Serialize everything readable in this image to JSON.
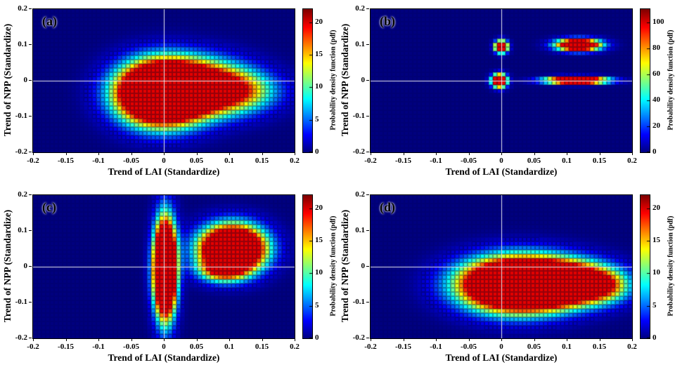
{
  "figure": {
    "background": "#ffffff"
  },
  "chart_data": [
    {
      "type": "heatmap",
      "panel_label": "(a)",
      "xlabel": "Trend of LAI (Standardize)",
      "ylabel": "Trend of NPP (Standardize)",
      "colorbar_label": "Probability density function (pdf)",
      "colormap": "jet",
      "xlim": [
        -0.2,
        0.2
      ],
      "ylim": [
        -0.2,
        0.2
      ],
      "x_ticks": [
        "-0.2",
        "-0.15",
        "-0.1",
        "-0.05",
        "0",
        "0.05",
        "0.1",
        "0.15",
        "0.2"
      ],
      "y_ticks": [
        "-0.2",
        "-0.1",
        "0",
        "0.1",
        "0.2"
      ],
      "colorbar_ticks": [
        "0",
        "5",
        "10",
        "15",
        "20"
      ],
      "colorbar_max": 22,
      "crosshair": true,
      "crosshair_color": "#ffffff",
      "blobs": [
        {
          "x": -0.005,
          "y": -0.035,
          "sx": 0.042,
          "sy": 0.055,
          "amp": 55
        },
        {
          "x": 0.055,
          "y": -0.02,
          "sx": 0.05,
          "sy": 0.05,
          "amp": 26
        },
        {
          "x": 0.115,
          "y": -0.03,
          "sx": 0.042,
          "sy": 0.038,
          "amp": 11
        }
      ]
    },
    {
      "type": "heatmap",
      "panel_label": "(b)",
      "xlabel": "Trend of LAI (Standardize)",
      "ylabel": "Trend of NPP (Standardize)",
      "colorbar_label": "Probability density function (pdf)",
      "colormap": "jet",
      "xlim": [
        -0.2,
        0.2
      ],
      "ylim": [
        -0.2,
        0.2
      ],
      "x_ticks": [
        "-0.2",
        "-0.15",
        "-0.1",
        "-0.05",
        "0",
        "0.05",
        "0.1",
        "0.15",
        "0.2"
      ],
      "y_ticks": [
        "-0.2",
        "-0.1",
        "0",
        "0.1",
        "0.2"
      ],
      "colorbar_ticks": [
        "0",
        "20",
        "40",
        "60",
        "80",
        "100"
      ],
      "colorbar_max": 110,
      "crosshair": true,
      "crosshair_color": "#ffffff",
      "blobs": [
        {
          "x": 0.0,
          "y": 0.095,
          "sx": 0.0065,
          "sy": 0.011,
          "amp": 200
        },
        {
          "x": -0.003,
          "y": 0.0,
          "sx": 0.0075,
          "sy": 0.012,
          "amp": 210
        },
        {
          "x": 0.118,
          "y": 0.1,
          "sx": 0.022,
          "sy": 0.011,
          "amp": 200
        },
        {
          "x": 0.115,
          "y": 0.001,
          "sx": 0.03,
          "sy": 0.0065,
          "amp": 210
        }
      ]
    },
    {
      "type": "heatmap",
      "panel_label": "(c)",
      "xlabel": "Trend of LAI (Standardize)",
      "ylabel": "Trend of NPP (Standardize)",
      "colorbar_label": "Probability density function (pdf)",
      "colormap": "jet",
      "xlim": [
        -0.2,
        0.2
      ],
      "ylim": [
        -0.2,
        0.2
      ],
      "x_ticks": [
        "-0.2",
        "-0.15",
        "-0.1",
        "-0.05",
        "0",
        "0.05",
        "0.1",
        "0.15",
        "0.2"
      ],
      "y_ticks": [
        "-0.2",
        "-0.1",
        "0",
        "0.1",
        "0.2"
      ],
      "colorbar_ticks": [
        "0",
        "5",
        "10",
        "15",
        "20"
      ],
      "colorbar_max": 22,
      "crosshair": true,
      "crosshair_color": "#ffffff",
      "blobs": [
        {
          "x": 0.002,
          "y": -0.005,
          "sx": 0.011,
          "sy": 0.085,
          "amp": 60
        },
        {
          "x": 0.105,
          "y": 0.05,
          "sx": 0.032,
          "sy": 0.042,
          "amp": 50
        },
        {
          "x": 0.09,
          "y": -0.01,
          "sx": 0.025,
          "sy": 0.022,
          "amp": 14
        }
      ]
    },
    {
      "type": "heatmap",
      "panel_label": "(d)",
      "xlabel": "Trend of LAI (Standardize)",
      "ylabel": "Trend of NPP (Standardize)",
      "colorbar_label": "Probability density function (pdf)",
      "colormap": "jet",
      "xlim": [
        -0.2,
        0.2
      ],
      "ylim": [
        -0.2,
        0.2
      ],
      "x_ticks": [
        "-0.2",
        "-0.15",
        "-0.1",
        "-0.05",
        "0",
        "0.05",
        "0.1",
        "0.15",
        "0.2"
      ],
      "y_ticks": [
        "-0.2",
        "-0.1",
        "0",
        "0.1",
        "0.2"
      ],
      "colorbar_ticks": [
        "0",
        "5",
        "10",
        "15",
        "20"
      ],
      "colorbar_max": 22,
      "crosshair": true,
      "crosshair_color": "#ffffff",
      "blobs": [
        {
          "x": 0.025,
          "y": -0.05,
          "sx": 0.055,
          "sy": 0.047,
          "amp": 55
        },
        {
          "x": 0.1,
          "y": -0.045,
          "sx": 0.048,
          "sy": 0.038,
          "amp": 30
        },
        {
          "x": 0.155,
          "y": -0.055,
          "sx": 0.028,
          "sy": 0.03,
          "amp": 10
        }
      ]
    }
  ]
}
